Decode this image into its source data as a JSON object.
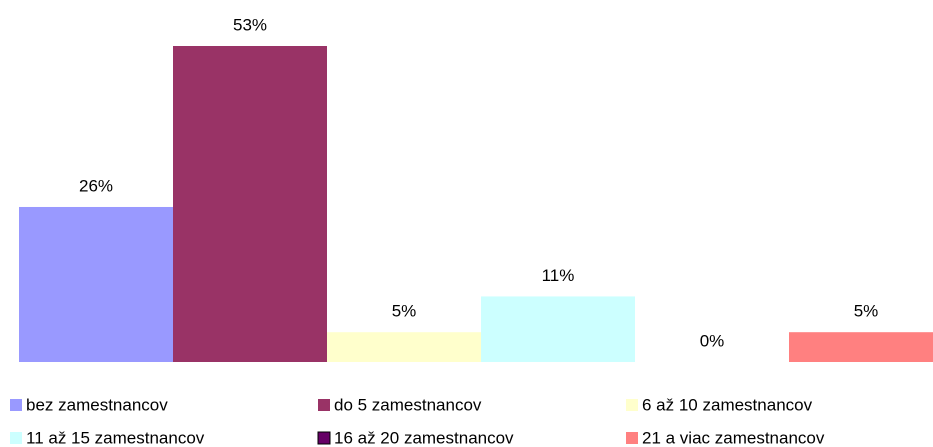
{
  "chart_data": {
    "type": "bar",
    "series": [
      {
        "name": "bez zamestnancov",
        "color": "#9999ff",
        "values": [
          26
        ],
        "value_labels": [
          "26%"
        ]
      },
      {
        "name": "do 5 zamestnancov",
        "color": "#993366",
        "values": [
          53
        ],
        "value_labels": [
          "53%"
        ]
      },
      {
        "name": "6 až 10 zamestnancov",
        "color": "#ffffcc",
        "values": [
          5
        ],
        "value_labels": [
          "5%"
        ]
      },
      {
        "name": "11 až 15 zamestnancov",
        "color": "#ccffff",
        "values": [
          11
        ],
        "value_labels": [
          "11%"
        ]
      },
      {
        "name": "16 až 20 zamestnancov",
        "color": "#660066",
        "values": [
          0
        ],
        "value_labels": [
          "0%"
        ]
      },
      {
        "name": "21 a viac zamestnancov",
        "color": "#ff8080",
        "values": [
          5
        ],
        "value_labels": [
          "5%"
        ]
      }
    ]
  }
}
